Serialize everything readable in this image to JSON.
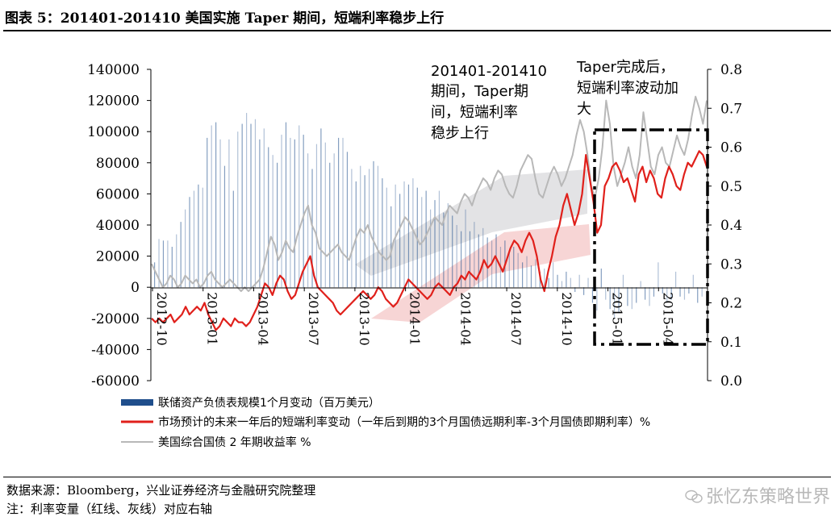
{
  "figure": {
    "title": "图表 5：201401-201410 美国实施 Taper 期间，短端利率稳步上行",
    "source": "数据来源：Bloomberg，兴业证券经济与金融研究院整理",
    "note": "注：利率变量（红线、灰线）对应右轴",
    "watermark": "张忆东策略世界",
    "watermark_icon": "wechat-icon"
  },
  "chart_data": {
    "type": "bar+line",
    "left_axis": {
      "range": [
        -60000,
        140000
      ],
      "ticks": [
        "-60000",
        "-40000",
        "-20000",
        "0",
        "20000",
        "40000",
        "60000",
        "80000",
        "100000",
        "120000",
        "140000"
      ]
    },
    "right_axis": {
      "range": [
        0.0,
        0.8
      ],
      "ticks": [
        "0.0",
        "0.1",
        "0.2",
        "0.3",
        "0.4",
        "0.5",
        "0.6",
        "0.7",
        "0.8"
      ]
    },
    "x_axis": {
      "start": "2012-10",
      "end": "2015-06",
      "tick_labels": [
        "2012-10",
        "2013-01",
        "2013-04",
        "2013-07",
        "2013-10",
        "2014-01",
        "2014-04",
        "2014-07",
        "2014-10",
        "2015-01",
        "2015-04"
      ]
    },
    "annotations": [
      {
        "text": [
          "201401-201410",
          "期间，Taper期",
          "间，短端利率",
          "稳步上行"
        ]
      },
      {
        "text": [
          "Taper完成后，",
          "短端利率波动加",
          "大"
        ]
      }
    ],
    "legend": [
      "联储资产负债表规模1个月变动（百万美元）",
      "市场预计的未来一年后的短端利率变动（一年后到期的3个月国债远期利率-3个月国债即期利率）%",
      "美国综合国债 2 年期收益率 %"
    ],
    "series": [
      {
        "name": "联储资产负债表规模1个月变动（百万美元）",
        "axis": "left",
        "style": "bar",
        "color": "#1f4e8c",
        "values": [
          16000,
          31000,
          30000,
          30000,
          26000,
          34000,
          42000,
          50000,
          58000,
          62000,
          66000,
          64000,
          96000,
          104000,
          106000,
          95000,
          78000,
          95000,
          62000,
          100000,
          105000,
          112000,
          105000,
          108000,
          95000,
          102000,
          90000,
          85000,
          80000,
          98000,
          106000,
          96000,
          95000,
          104000,
          98000,
          86000,
          76000,
          92000,
          102000,
          93000,
          80000,
          86000,
          96000,
          96000,
          87000,
          76000,
          68000,
          78000,
          72000,
          76000,
          81000,
          78000,
          70000,
          64000,
          52000,
          66000,
          60000,
          68000,
          66000,
          70000,
          64000,
          58000,
          62000,
          50000,
          56000,
          62000,
          48000,
          54000,
          46000,
          40000,
          36000,
          50000,
          36000,
          42000,
          34000,
          38000,
          32000,
          30000,
          34000,
          26000,
          30000,
          22000,
          26000,
          22000,
          16000,
          20000,
          14000,
          18000,
          10000,
          12000,
          6000,
          16000,
          8000,
          4000,
          10000,
          6000,
          -3000,
          8000,
          -5000,
          6000,
          -10000,
          -15000,
          12000,
          -8000,
          -14000,
          -20000,
          -16000,
          8000,
          -12000,
          -14000,
          -10000,
          4000,
          -8000,
          -12000,
          -6000,
          16000,
          -4000,
          -10000,
          -8000,
          10000,
          -6000,
          -8000,
          -4000,
          8000,
          -10000,
          -6000
        ]
      },
      {
        "name": "市场预计的未来一年后的短端利率变动（一年后到期的3个月国债远期利率-3个月国债即期利率）%",
        "axis": "right",
        "style": "line",
        "color": "#e0201b",
        "values": [
          0.16,
          0.15,
          0.16,
          0.15,
          0.16,
          0.17,
          0.15,
          0.16,
          0.17,
          0.19,
          0.17,
          0.18,
          0.19,
          0.18,
          0.2,
          0.17,
          0.15,
          0.13,
          0.14,
          0.16,
          0.15,
          0.14,
          0.16,
          0.15,
          0.15,
          0.14,
          0.15,
          0.17,
          0.19,
          0.22,
          0.25,
          0.24,
          0.22,
          0.25,
          0.27,
          0.26,
          0.23,
          0.21,
          0.22,
          0.25,
          0.28,
          0.3,
          0.32,
          0.27,
          0.24,
          0.23,
          0.22,
          0.21,
          0.2,
          0.18,
          0.17,
          0.18,
          0.19,
          0.2,
          0.21,
          0.22,
          0.23,
          0.22,
          0.21,
          0.22,
          0.24,
          0.23,
          0.21,
          0.2,
          0.19,
          0.2,
          0.22,
          0.24,
          0.26,
          0.25,
          0.24,
          0.23,
          0.22,
          0.21,
          0.22,
          0.24,
          0.25,
          0.24,
          0.23,
          0.22,
          0.24,
          0.25,
          0.27,
          0.26,
          0.28,
          0.27,
          0.26,
          0.28,
          0.31,
          0.29,
          0.3,
          0.32,
          0.3,
          0.28,
          0.31,
          0.34,
          0.36,
          0.35,
          0.33,
          0.36,
          0.38,
          0.36,
          0.32,
          0.26,
          0.23,
          0.28,
          0.32,
          0.37,
          0.4,
          0.45,
          0.48,
          0.44,
          0.4,
          0.43,
          0.48,
          0.58,
          0.52,
          0.46,
          0.38,
          0.4,
          0.5,
          0.52,
          0.55,
          0.56,
          0.54,
          0.51,
          0.52,
          0.49,
          0.46,
          0.53,
          0.55,
          0.51,
          0.54,
          0.52,
          0.48,
          0.47,
          0.52,
          0.55,
          0.53,
          0.5,
          0.49,
          0.53,
          0.56,
          0.55,
          0.57,
          0.59,
          0.58,
          0.55
        ]
      },
      {
        "name": "美国综合国债 2 年期收益率 %",
        "axis": "right",
        "style": "line",
        "color": "#b8b8b8",
        "values": [
          0.3,
          0.28,
          0.26,
          0.24,
          0.25,
          0.27,
          0.26,
          0.24,
          0.25,
          0.27,
          0.26,
          0.25,
          0.26,
          0.24,
          0.25,
          0.27,
          0.28,
          0.26,
          0.25,
          0.24,
          0.25,
          0.26,
          0.25,
          0.24,
          0.23,
          0.24,
          0.23,
          0.24,
          0.25,
          0.26,
          0.29,
          0.33,
          0.37,
          0.35,
          0.31,
          0.33,
          0.36,
          0.34,
          0.33,
          0.37,
          0.4,
          0.43,
          0.45,
          0.4,
          0.38,
          0.34,
          0.33,
          0.32,
          0.33,
          0.34,
          0.35,
          0.33,
          0.32,
          0.31,
          0.34,
          0.37,
          0.39,
          0.38,
          0.4,
          0.37,
          0.35,
          0.33,
          0.32,
          0.31,
          0.32,
          0.36,
          0.38,
          0.4,
          0.42,
          0.41,
          0.39,
          0.37,
          0.35,
          0.36,
          0.38,
          0.4,
          0.42,
          0.41,
          0.4,
          0.43,
          0.45,
          0.44,
          0.43,
          0.46,
          0.48,
          0.47,
          0.45,
          0.48,
          0.5,
          0.52,
          0.51,
          0.49,
          0.52,
          0.54,
          0.53,
          0.5,
          0.48,
          0.47,
          0.5,
          0.54,
          0.56,
          0.58,
          0.57,
          0.52,
          0.48,
          0.47,
          0.5,
          0.53,
          0.55,
          0.53,
          0.5,
          0.52,
          0.55,
          0.58,
          0.63,
          0.67,
          0.64,
          0.58,
          0.5,
          0.47,
          0.52,
          0.6,
          0.72,
          0.66,
          0.55,
          0.5,
          0.53,
          0.56,
          0.6,
          0.55,
          0.52,
          0.58,
          0.69,
          0.62,
          0.55,
          0.53,
          0.58,
          0.6,
          0.56,
          0.55,
          0.59,
          0.63,
          0.6,
          0.58,
          0.62,
          0.68,
          0.73,
          0.7,
          0.66,
          0.72
        ]
      }
    ]
  }
}
